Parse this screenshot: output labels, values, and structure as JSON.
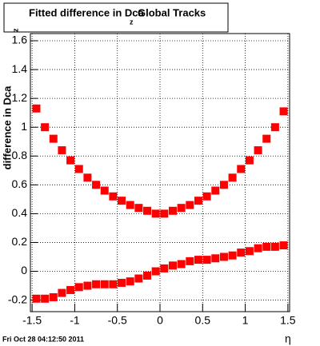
{
  "chart_data": {
    "type": "scatter",
    "title": "Fitted difference in Dca",
    "title_subscript": "z",
    "title_suffix": "Global Tracks",
    "xlabel": "η",
    "ylabel": "difference in Dca",
    "ylabel_subscript": "z",
    "footer": "Fri Oct 28 04:12:50 2011",
    "x": [
      -1.45,
      -1.35,
      -1.25,
      -1.15,
      -1.05,
      -0.95,
      -0.85,
      -0.75,
      -0.65,
      -0.55,
      -0.45,
      -0.35,
      -0.25,
      -0.15,
      -0.05,
      0.05,
      0.15,
      0.25,
      0.35,
      0.45,
      0.55,
      0.65,
      0.75,
      0.85,
      0.95,
      1.05,
      1.15,
      1.25,
      1.35,
      1.45
    ],
    "series": [
      {
        "color": "#ff0000",
        "values": [
          1.13,
          1.0,
          0.92,
          0.84,
          0.77,
          0.71,
          0.65,
          0.6,
          0.56,
          0.52,
          0.49,
          0.46,
          0.44,
          0.42,
          0.4,
          0.4,
          0.42,
          0.44,
          0.46,
          0.49,
          0.52,
          0.56,
          0.6,
          0.65,
          0.71,
          0.77,
          0.84,
          0.92,
          1.0,
          1.11
        ]
      },
      {
        "color": "#ff0000",
        "values": [
          -0.19,
          -0.19,
          -0.18,
          -0.15,
          -0.13,
          -0.11,
          -0.1,
          -0.09,
          -0.09,
          -0.09,
          -0.08,
          -0.07,
          -0.05,
          -0.03,
          0.0,
          0.02,
          0.04,
          0.05,
          0.07,
          0.08,
          0.08,
          0.09,
          0.1,
          0.11,
          0.13,
          0.14,
          0.16,
          0.17,
          0.17,
          0.18
        ]
      }
    ],
    "xlim": [
      -1.52,
      1.52
    ],
    "ylim": [
      -0.28,
      1.65
    ],
    "xticks": [
      -1.5,
      -1,
      -0.5,
      0,
      0.5,
      1,
      1.5
    ],
    "yticks": [
      -0.2,
      0,
      0.2,
      0.4,
      0.6,
      0.8,
      1,
      1.2,
      1.4,
      1.6
    ],
    "grid": true
  }
}
